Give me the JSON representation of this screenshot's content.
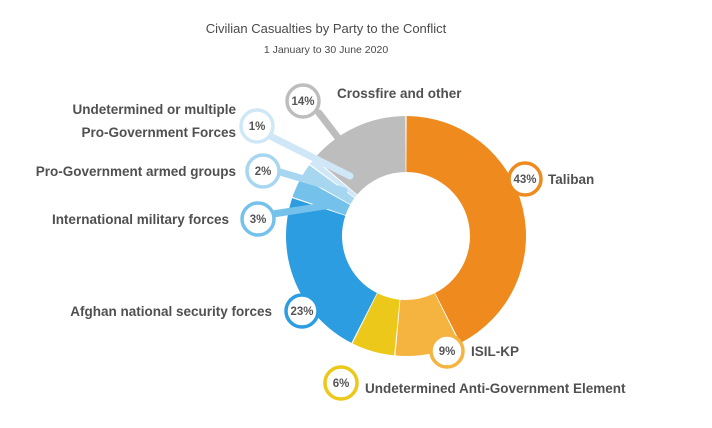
{
  "chart_data": {
    "type": "pie",
    "variant": "donut",
    "title": "Civilian Casualties by Party to the Conflict",
    "subtitle": "1 January to 30 June 2020",
    "unit": "%",
    "slices": [
      {
        "label": "Taliban",
        "value": 43,
        "color": "#ee8a1e"
      },
      {
        "label": "ISIL-KP",
        "value": 9,
        "color": "#f5b340"
      },
      {
        "label": "Undetermined Anti-Government Element",
        "value": 6,
        "color": "#ecc81b"
      },
      {
        "label": "Afghan national security forces",
        "value": 23,
        "color": "#2c9de0"
      },
      {
        "label": "International military forces",
        "value": 3,
        "color": "#74c2ec"
      },
      {
        "label": "Pro-Government armed groups",
        "value": 2,
        "color": "#a7d6f1"
      },
      {
        "label": "Undetermined or multiple Pro-Government Forces",
        "value": 1,
        "label_lines": [
          "Undetermined or multiple",
          "Pro-Government Forces"
        ],
        "color": "#cfe7f6"
      },
      {
        "label": "Crossfire and other",
        "value": 14,
        "color": "#bdbdbd"
      }
    ]
  }
}
